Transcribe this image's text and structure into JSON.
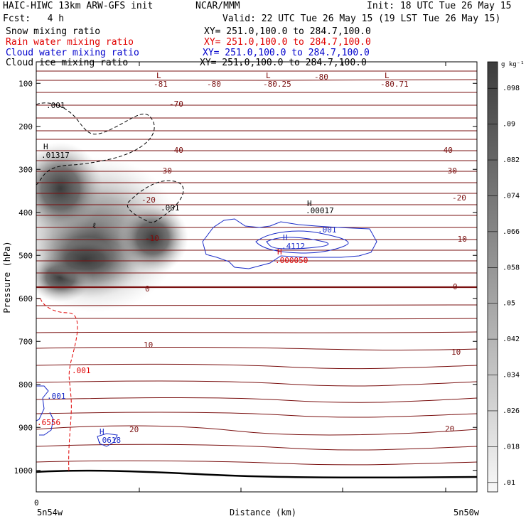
{
  "header": {
    "title": "HAIC-HIWC 13km ARW-GFS init",
    "source": "NCAR/MMM",
    "init": "Init: 18 UTC Tue 26 May 15",
    "fcst": "Fcst:   4 h",
    "valid": "Valid: 22 UTC Tue 26 May 15 (19 LST Tue 26 May 15)",
    "fields": [
      {
        "name": "Snow mixing ratio",
        "xy": "XY= 251.0,100.0 to 284.7,100.0",
        "color": "#000000"
      },
      {
        "name": "Rain water mixing ratio",
        "xy": "XY= 251.0,100.0 to 284.7,100.0",
        "color": "#e00000"
      },
      {
        "name": "Cloud water mixing ratio",
        "xy": "XY= 251.0,100.0 to 284.7,100.0",
        "color": "#0000cc"
      },
      {
        "name": "Cloud ice mixing ratio",
        "xy": "XY= 251.0,100.0 to 284.7,100.0",
        "color": "#000000"
      }
    ]
  },
  "chart_data": {
    "type": "heatmap",
    "ylabel": "Pressure (hPa)",
    "xlabel": "Distance (km)",
    "x_start_label": "0",
    "x_left_label": "5n54w",
    "x_right_label": "5n50w",
    "y_ticks": [
      100,
      200,
      300,
      400,
      500,
      600,
      700,
      800,
      900,
      1000
    ],
    "ylim": [
      1050,
      50
    ],
    "colorbar": {
      "unit": "g kg⁻¹",
      "ticks": [
        ".098",
        ".09",
        ".082",
        ".074",
        ".066",
        ".058",
        ".05",
        ".042",
        ".034",
        ".026",
        ".018",
        ".01"
      ]
    },
    "temperature_contours": [
      -70,
      -40,
      -30,
      -20,
      -10,
      0,
      10,
      20
    ],
    "temperature_labels": [
      "-81",
      "-80",
      "-80.25",
      "-80",
      "-80.71",
      "-70",
      "-40",
      "-40",
      "-30",
      "-30",
      "-20",
      "-20",
      "-10",
      "-10",
      "0",
      "0",
      "10",
      "10",
      "20",
      "20"
    ],
    "extrema_labels": [
      {
        "text": "L",
        "color": "#7a0000"
      },
      {
        "text": "L",
        "color": "#7a0000"
      },
      {
        "text": "L",
        "color": "#7a0000"
      },
      {
        "text": "H",
        "color": "#000000"
      },
      {
        "text": ".01317",
        "color": "#000000"
      },
      {
        "text": ".001",
        "color": "#000000"
      },
      {
        "text": ".001",
        "color": "#000000"
      },
      {
        "text": "H",
        "color": "#000000"
      },
      {
        "text": ".00017",
        "color": "#000000"
      },
      {
        "text": ".001",
        "color": "#0000cc"
      },
      {
        "text": "H",
        "color": "#0000cc"
      },
      {
        "text": ".4112",
        "color": "#0000cc"
      },
      {
        "text": "H",
        "color": "#e00000"
      },
      {
        "text": ".000050",
        "color": "#e00000"
      },
      {
        "text": ".001",
        "color": "#e00000"
      },
      {
        "text": ".001",
        "color": "#0000cc"
      },
      {
        "text": ".6556",
        "color": "#e00000"
      },
      {
        "text": "H",
        "color": "#0000cc"
      },
      {
        "text": ".0618",
        "color": "#0000cc"
      },
      {
        "text": "ℓ",
        "color": "#000000"
      }
    ]
  }
}
